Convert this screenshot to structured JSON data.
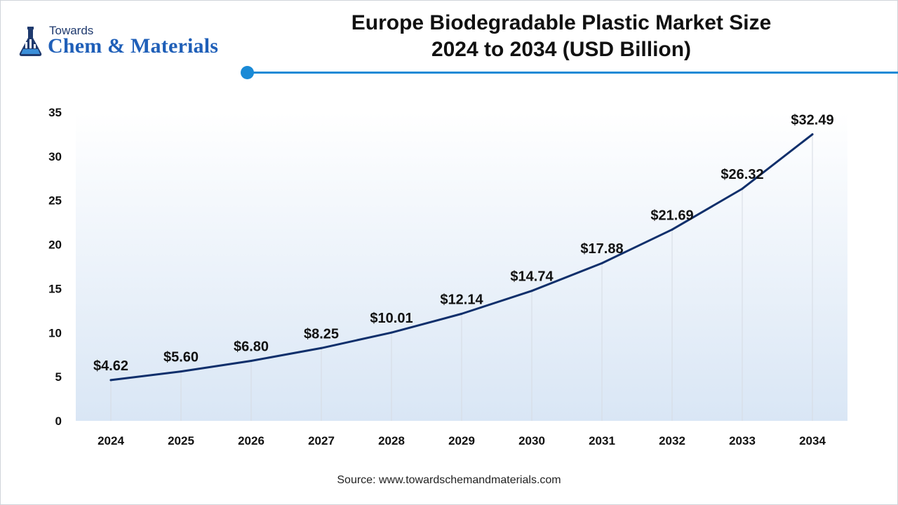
{
  "logo": {
    "top_text": "Towards",
    "main_text": "Chem & Materials"
  },
  "header": {
    "title_line1": "Europe Biodegradable Plastic Market Size",
    "title_line2": "2024 to 2034 (USD Billion)"
  },
  "colors": {
    "line": "#0f2f6b",
    "accent": "#1a8ad6",
    "gradient_top": "#ffffff",
    "gradient_bottom": "#d9e6f5",
    "gridline": "#d6dbe3"
  },
  "chart_data": {
    "type": "area",
    "title": "Europe Biodegradable Plastic Market Size 2024 to 2034 (USD Billion)",
    "x": [
      "2024",
      "2025",
      "2026",
      "2027",
      "2028",
      "2029",
      "2030",
      "2031",
      "2032",
      "2033",
      "2034"
    ],
    "series": [
      {
        "values": [
          4.62,
          5.6,
          6.8,
          8.25,
          10.01,
          12.14,
          14.74,
          17.88,
          21.69,
          26.32,
          32.49
        ],
        "labels": [
          "$4.62",
          "$5.60",
          "$6.80",
          "$8.25",
          "$10.01",
          "$12.14",
          "$14.74",
          "$17.88",
          "$21.69",
          "$26.32",
          "$32.49"
        ]
      }
    ],
    "y_ticks": [
      0,
      5,
      10,
      15,
      20,
      25,
      30,
      35
    ],
    "ylim": [
      0,
      35
    ],
    "xlabel": "",
    "ylabel": "",
    "grid": "vertical lines at each x category"
  },
  "footer": {
    "source": "Source: www.towardschemandmaterials.com"
  }
}
